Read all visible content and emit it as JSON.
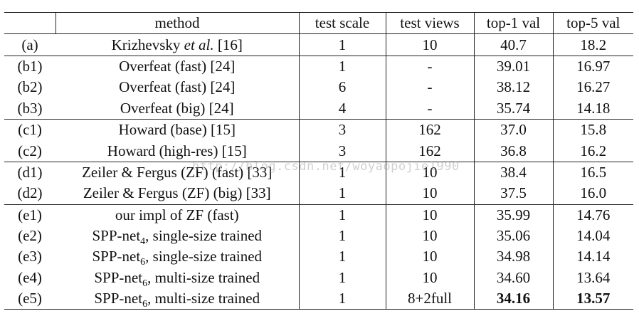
{
  "headers": {
    "method": "method",
    "test_scale": "test scale",
    "test_views": "test views",
    "top1": "top-1 val",
    "top5": "top-5 val"
  },
  "rows": [
    {
      "id": "(a)",
      "method": "Krizhevsky",
      "method_ital": "et al.",
      "method_ref": "[16]",
      "scale": "1",
      "views": "10",
      "top1": "40.7",
      "top5": "18.2"
    },
    {
      "id": "(b1)",
      "method": "Overfeat (fast) [24]",
      "scale": "1",
      "views": "-",
      "top1": "39.01",
      "top5": "16.97"
    },
    {
      "id": "(b2)",
      "method": "Overfeat (fast) [24]",
      "scale": "6",
      "views": "-",
      "top1": "38.12",
      "top5": "16.27"
    },
    {
      "id": "(b3)",
      "method": "Overfeat (big) [24]",
      "scale": "4",
      "views": "-",
      "top1": "35.74",
      "top5": "14.18"
    },
    {
      "id": "(c1)",
      "method": "Howard (base) [15]",
      "scale": "3",
      "views": "162",
      "top1": "37.0",
      "top5": "15.8"
    },
    {
      "id": "(c2)",
      "method": "Howard (high-res) [15]",
      "scale": "3",
      "views": "162",
      "top1": "36.8",
      "top5": "16.2"
    },
    {
      "id": "(d1)",
      "method": "Zeiler & Fergus (ZF) (fast) [33]",
      "scale": "1",
      "views": "10",
      "top1": "38.4",
      "top5": "16.5"
    },
    {
      "id": "(d2)",
      "method": "Zeiler & Fergus (ZF) (big) [33]",
      "scale": "1",
      "views": "10",
      "top1": "37.5",
      "top5": "16.0"
    },
    {
      "id": "(e1)",
      "method": "our impl of ZF (fast)",
      "scale": "1",
      "views": "10",
      "top1": "35.99",
      "top5": "14.76"
    },
    {
      "id": "(e2)",
      "method_pre": "SPP-net",
      "method_sub": "4",
      "method_post": ", single-size trained",
      "scale": "1",
      "views": "10",
      "top1": "35.06",
      "top5": "14.04"
    },
    {
      "id": "(e3)",
      "method_pre": "SPP-net",
      "method_sub": "6",
      "method_post": ", single-size trained",
      "scale": "1",
      "views": "10",
      "top1": "34.98",
      "top5": "14.14"
    },
    {
      "id": "(e4)",
      "method_pre": "SPP-net",
      "method_sub": "6",
      "method_post": ", multi-size trained",
      "scale": "1",
      "views": "10",
      "top1": "34.60",
      "top5": "13.64"
    },
    {
      "id": "(e5)",
      "method_pre": "SPP-net",
      "method_sub": "6",
      "method_post": ", multi-size trained",
      "scale": "1",
      "views": "8+2full",
      "top1": "34.16",
      "top5": "13.57"
    }
  ],
  "watermark": "http://blog.csdn.net/woyaopojie1990"
}
